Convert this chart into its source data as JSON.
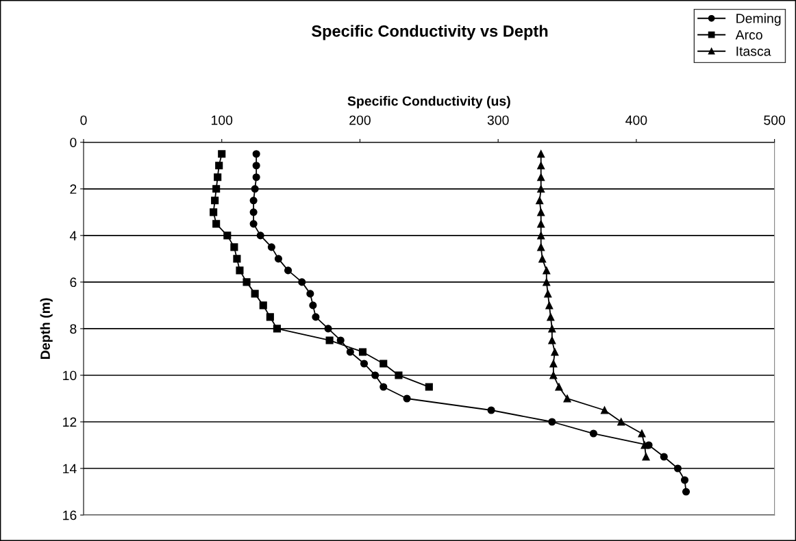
{
  "chart_data": {
    "type": "line",
    "title": "Specific Conductivity vs Depth",
    "xlabel": "Specific Conductivity (us)",
    "ylabel": "Depth (m)",
    "xlim": [
      0,
      500
    ],
    "xticks": [
      0,
      100,
      200,
      300,
      400,
      500
    ],
    "ylim": [
      16,
      0
    ],
    "yticks": [
      0,
      2,
      4,
      6,
      8,
      10,
      12,
      14,
      16
    ],
    "grid": "y",
    "legend": "top right",
    "line_style": "solid",
    "series": [
      {
        "name": "Deming",
        "color": "#000000",
        "marker": "circle",
        "x": [
          125,
          125,
          125,
          124,
          123,
          123,
          123,
          128,
          136,
          141,
          148,
          158,
          164,
          166,
          168,
          177,
          186,
          193,
          203,
          211,
          217,
          234,
          295,
          339,
          369,
          409,
          420,
          430,
          435,
          436
        ],
        "values": [
          0.5,
          1,
          1.5,
          2,
          2.5,
          3,
          3.5,
          4,
          4.5,
          5,
          5.5,
          6,
          6.5,
          7,
          7.5,
          8,
          8.5,
          9,
          9.5,
          10,
          10.5,
          11,
          11.5,
          12,
          12.5,
          13,
          13.5,
          14,
          14.5,
          15
        ]
      },
      {
        "name": "Arco",
        "color": "#000000",
        "marker": "square",
        "x": [
          100,
          98,
          97,
          96,
          95,
          94,
          96,
          104,
          109,
          111,
          113,
          118,
          124,
          130,
          135,
          140,
          178,
          202,
          217,
          228,
          250
        ],
        "values": [
          0.5,
          1,
          1.5,
          2,
          2.5,
          3,
          3.5,
          4,
          4.5,
          5,
          5.5,
          6,
          6.5,
          7,
          7.5,
          8,
          8.5,
          9,
          9.5,
          10,
          10.5
        ]
      },
      {
        "name": "Itasca",
        "color": "#000000",
        "marker": "triangle",
        "x": [
          331,
          331,
          331,
          331,
          330,
          331,
          331,
          331,
          331,
          332,
          335,
          335,
          336,
          337,
          338,
          339,
          339,
          341,
          340,
          340,
          344,
          350,
          377,
          389,
          404,
          406,
          407
        ],
        "values": [
          0.5,
          1,
          1.5,
          2,
          2.5,
          3,
          3.5,
          4,
          4.5,
          5,
          5.5,
          6,
          6.5,
          7,
          7.5,
          8,
          8.5,
          9,
          9.5,
          10,
          10.5,
          11,
          11.5,
          12,
          12.5,
          13,
          13.5
        ]
      }
    ]
  }
}
